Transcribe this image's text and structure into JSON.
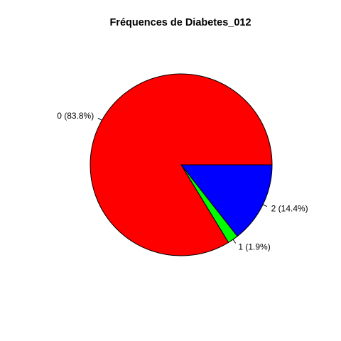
{
  "chart_data": {
    "type": "pie",
    "title": "Fréquences de Diabetes_012",
    "start_angle_deg": 0,
    "direction": "counterclockwise",
    "slices": [
      {
        "category": "0",
        "label": "0 (83.8%)",
        "percent": 83.8,
        "color": "#ff0000"
      },
      {
        "category": "1",
        "label": "1 (1.9%)",
        "percent": 1.9,
        "color": "#00ff00"
      },
      {
        "category": "2",
        "label": "2 (14.4%)",
        "percent": 14.4,
        "color": "#0000ff"
      }
    ]
  }
}
